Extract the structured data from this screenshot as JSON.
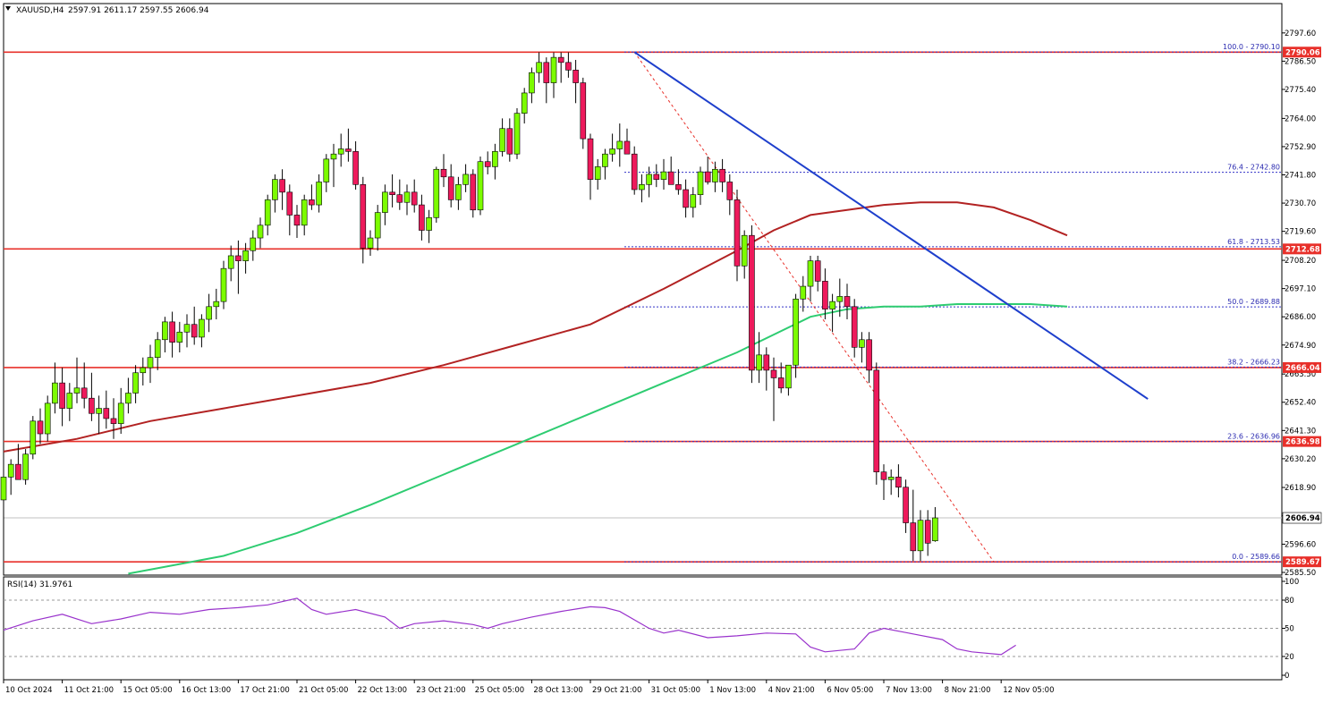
{
  "header": {
    "symbol_label": "XAUUSD,H4",
    "ohlc_text": "2597.91 2611.17 2597.55 2606.94"
  },
  "colors": {
    "background": "#ffffff",
    "bull_fill": "#7CFC00",
    "bear_fill": "#EE1A5C",
    "candle_outline": "#000000",
    "ma_fast": "#B22222",
    "ma_slow": "#2ECC71",
    "trendline": "#1E3FCC",
    "hline": "#E8302A",
    "fib_dotted": "#3232C8",
    "fib_text": "#2A2AB0",
    "rsi_line": "#9932CC",
    "current_price_line": "#C0C0C0"
  },
  "chart_data": [
    {
      "type": "candlestick",
      "title": "XAUUSD,H4",
      "ylim": [
        2585.5,
        2800.0
      ],
      "y_ticks": [
        "2797.60",
        "2786.50",
        "2775.40",
        "2764.00",
        "2752.90",
        "2741.80",
        "2730.70",
        "2719.60",
        "2708.20",
        "2697.10",
        "2686.00",
        "2674.90",
        "2663.50",
        "2652.40",
        "2641.30",
        "2630.20",
        "2618.90",
        "2607.80",
        "2596.60",
        "2585.50"
      ],
      "y_tick_values": [
        2797.6,
        2786.5,
        2775.4,
        2764.0,
        2752.9,
        2741.8,
        2730.7,
        2719.6,
        2708.2,
        2697.1,
        2686.0,
        2674.9,
        2663.5,
        2652.4,
        2641.3,
        2630.2,
        2618.9,
        2607.8,
        2596.6,
        2585.5
      ],
      "x_labels": [
        "10 Oct 2024",
        "11 Oct 21:00",
        "15 Oct 05:00",
        "16 Oct 13:00",
        "17 Oct 21:00",
        "21 Oct 05:00",
        "22 Oct 13:00",
        "23 Oct 21:00",
        "25 Oct 05:00",
        "28 Oct 13:00",
        "29 Oct 21:00",
        "31 Oct 05:00",
        "1 Nov 13:00",
        "4 Nov 21:00",
        "6 Nov 05:00",
        "7 Nov 13:00",
        "8 Nov 21:00",
        "12 Nov 05:00"
      ],
      "x_label_bars": [
        0,
        8,
        16,
        24,
        32,
        40,
        48,
        56,
        64,
        72,
        80,
        88,
        96,
        104,
        112,
        120,
        128,
        136
      ],
      "candles": [
        [
          2614,
          2626,
          2603,
          2623
        ],
        [
          2623,
          2630,
          2616,
          2628
        ],
        [
          2628,
          2636,
          2624,
          2622
        ],
        [
          2622,
          2634,
          2620,
          2632
        ],
        [
          2632,
          2647,
          2630,
          2645
        ],
        [
          2645,
          2650,
          2636,
          2640
        ],
        [
          2640,
          2655,
          2637,
          2652
        ],
        [
          2652,
          2668,
          2648,
          2660
        ],
        [
          2660,
          2666,
          2643,
          2650
        ],
        [
          2650,
          2660,
          2645,
          2656
        ],
        [
          2656,
          2670,
          2652,
          2658
        ],
        [
          2658,
          2668,
          2650,
          2654
        ],
        [
          2654,
          2664,
          2645,
          2648
        ],
        [
          2648,
          2655,
          2640,
          2650
        ],
        [
          2650,
          2657,
          2642,
          2646
        ],
        [
          2646,
          2654,
          2638,
          2644
        ],
        [
          2644,
          2658,
          2640,
          2652
        ],
        [
          2652,
          2662,
          2648,
          2656
        ],
        [
          2656,
          2667,
          2652,
          2664
        ],
        [
          2664,
          2670,
          2659,
          2666
        ],
        [
          2666,
          2675,
          2660,
          2670
        ],
        [
          2670,
          2680,
          2665,
          2677
        ],
        [
          2677,
          2686,
          2672,
          2684
        ],
        [
          2684,
          2688,
          2670,
          2676
        ],
        [
          2676,
          2684,
          2672,
          2680
        ],
        [
          2680,
          2687,
          2674,
          2683
        ],
        [
          2683,
          2690,
          2675,
          2678
        ],
        [
          2678,
          2687,
          2674,
          2685
        ],
        [
          2685,
          2695,
          2680,
          2690
        ],
        [
          2690,
          2697,
          2685,
          2692
        ],
        [
          2692,
          2708,
          2689,
          2705
        ],
        [
          2705,
          2714,
          2700,
          2710
        ],
        [
          2710,
          2716,
          2695,
          2708
        ],
        [
          2708,
          2715,
          2703,
          2712
        ],
        [
          2712,
          2720,
          2708,
          2717
        ],
        [
          2717,
          2725,
          2713,
          2722
        ],
        [
          2722,
          2734,
          2718,
          2732
        ],
        [
          2732,
          2742,
          2727,
          2740
        ],
        [
          2740,
          2744,
          2728,
          2735
        ],
        [
          2735,
          2738,
          2718,
          2726
        ],
        [
          2726,
          2730,
          2717,
          2722
        ],
        [
          2722,
          2734,
          2718,
          2732
        ],
        [
          2732,
          2738,
          2728,
          2730
        ],
        [
          2730,
          2742,
          2727,
          2739
        ],
        [
          2739,
          2750,
          2735,
          2748
        ],
        [
          2748,
          2754,
          2737,
          2750
        ],
        [
          2750,
          2758,
          2745,
          2752
        ],
        [
          2752,
          2760,
          2747,
          2751
        ],
        [
          2751,
          2755,
          2736,
          2738
        ],
        [
          2738,
          2741,
          2707,
          2713
        ],
        [
          2713,
          2720,
          2710,
          2717
        ],
        [
          2717,
          2730,
          2712,
          2727
        ],
        [
          2727,
          2738,
          2722,
          2735
        ],
        [
          2735,
          2742,
          2729,
          2734
        ],
        [
          2734,
          2740,
          2728,
          2731
        ],
        [
          2731,
          2738,
          2726,
          2735
        ],
        [
          2735,
          2740,
          2727,
          2730
        ],
        [
          2730,
          2734,
          2716,
          2720
        ],
        [
          2720,
          2728,
          2715,
          2725
        ],
        [
          2725,
          2745,
          2723,
          2744
        ],
        [
          2744,
          2750,
          2737,
          2741
        ],
        [
          2741,
          2746,
          2729,
          2732
        ],
        [
          2732,
          2741,
          2728,
          2738
        ],
        [
          2738,
          2746,
          2735,
          2742
        ],
        [
          2742,
          2744,
          2725,
          2728
        ],
        [
          2728,
          2749,
          2726,
          2747
        ],
        [
          2747,
          2751,
          2742,
          2745
        ],
        [
          2745,
          2754,
          2740,
          2751
        ],
        [
          2751,
          2764,
          2749,
          2760
        ],
        [
          2760,
          2764,
          2747,
          2750
        ],
        [
          2750,
          2768,
          2748,
          2766
        ],
        [
          2766,
          2776,
          2762,
          2774
        ],
        [
          2774,
          2784,
          2770,
          2782
        ],
        [
          2782,
          2790,
          2778,
          2786
        ],
        [
          2786,
          2788,
          2770,
          2778
        ],
        [
          2778,
          2790,
          2772,
          2788
        ],
        [
          2788,
          2790,
          2778,
          2786
        ],
        [
          2786,
          2790,
          2780,
          2783
        ],
        [
          2783,
          2787,
          2770,
          2778
        ],
        [
          2778,
          2780,
          2752,
          2756
        ],
        [
          2756,
          2758,
          2732,
          2740
        ],
        [
          2740,
          2748,
          2736,
          2745
        ],
        [
          2745,
          2752,
          2740,
          2750
        ],
        [
          2750,
          2758,
          2747,
          2752
        ],
        [
          2752,
          2762,
          2745,
          2755
        ],
        [
          2755,
          2760,
          2750,
          2750
        ],
        [
          2750,
          2753,
          2734,
          2736
        ],
        [
          2736,
          2742,
          2731,
          2738
        ],
        [
          2738,
          2745,
          2733,
          2742
        ],
        [
          2742,
          2746,
          2737,
          2740
        ],
        [
          2740,
          2748,
          2736,
          2743
        ],
        [
          2743,
          2749,
          2739,
          2738
        ],
        [
          2738,
          2744,
          2734,
          2736
        ],
        [
          2736,
          2740,
          2725,
          2729
        ],
        [
          2729,
          2737,
          2725,
          2734
        ],
        [
          2734,
          2745,
          2730,
          2743
        ],
        [
          2743,
          2749,
          2738,
          2739
        ],
        [
          2739,
          2747,
          2735,
          2744
        ],
        [
          2744,
          2748,
          2735,
          2739
        ],
        [
          2739,
          2742,
          2726,
          2732
        ],
        [
          2732,
          2736,
          2700,
          2706
        ],
        [
          2706,
          2720,
          2701,
          2718
        ],
        [
          2718,
          2722,
          2660,
          2665
        ],
        [
          2665,
          2680,
          2660,
          2671
        ],
        [
          2671,
          2674,
          2657,
          2665
        ],
        [
          2665,
          2670,
          2645,
          2662
        ],
        [
          2662,
          2668,
          2656,
          2658
        ],
        [
          2658,
          2666,
          2655,
          2667
        ],
        [
          2667,
          2695,
          2662,
          2693
        ],
        [
          2693,
          2702,
          2688,
          2698
        ],
        [
          2698,
          2710,
          2692,
          2708
        ],
        [
          2708,
          2710,
          2696,
          2700
        ],
        [
          2700,
          2705,
          2685,
          2689
        ],
        [
          2689,
          2695,
          2680,
          2692
        ],
        [
          2692,
          2701,
          2686,
          2694
        ],
        [
          2694,
          2699,
          2685,
          2690
        ],
        [
          2690,
          2693,
          2670,
          2674
        ],
        [
          2674,
          2680,
          2668,
          2677
        ],
        [
          2677,
          2680,
          2660,
          2665
        ],
        [
          2665,
          2668,
          2620,
          2625
        ],
        [
          2625,
          2628,
          2614,
          2622
        ],
        [
          2622,
          2626,
          2616,
          2623
        ],
        [
          2623,
          2628,
          2615,
          2619
        ],
        [
          2619,
          2622,
          2601,
          2605
        ],
        [
          2605,
          2618,
          2590,
          2594
        ],
        [
          2594,
          2610,
          2590,
          2606
        ],
        [
          2606,
          2610,
          2592,
          2597
        ],
        [
          2597.91,
          2611.17,
          2597.55,
          2606.94
        ]
      ],
      "series": [
        {
          "name": "",
          "kind": "moving-average",
          "x": [
            0,
            10,
            20,
            30,
            40,
            50,
            60,
            70,
            80,
            90,
            100,
            105,
            110,
            115,
            120,
            125,
            130,
            135,
            140,
            145
          ],
          "values": [
            2633,
            2638,
            2645,
            2650,
            2655,
            2660,
            2667,
            2675,
            2683,
            2697,
            2712,
            2720,
            2726,
            2728,
            2730,
            2731,
            2731,
            2729,
            2724,
            2718
          ]
        },
        {
          "name": "",
          "kind": "moving-average",
          "x": [
            17,
            30,
            40,
            50,
            60,
            70,
            80,
            90,
            100,
            105,
            110,
            115,
            120,
            125,
            130,
            135,
            140,
            145
          ],
          "values": [
            2585,
            2592,
            2601,
            2612,
            2624,
            2636,
            2648,
            2660,
            2672,
            2679,
            2686,
            2689,
            2690,
            2690,
            2691,
            2691,
            2691,
            2690
          ]
        }
      ],
      "trendline": {
        "x": [
          86,
          156
        ],
        "values": [
          2790.1,
          2653.7
        ]
      },
      "fib_diagonal": {
        "x": [
          86,
          135
        ],
        "values": [
          2790.1,
          2589.66
        ]
      },
      "horizontal_levels": [
        {
          "value": 2790.06,
          "label": "2790.06"
        },
        {
          "value": 2712.68,
          "label": "2712.68"
        },
        {
          "value": 2666.04,
          "label": "2666.04"
        },
        {
          "value": 2636.98,
          "label": "2636.98"
        },
        {
          "value": 2589.67,
          "label": "2589.67"
        }
      ],
      "fibonacci": [
        {
          "level": "100.0",
          "value": 2790.1,
          "label": "100.0 - 2790.10"
        },
        {
          "level": "76.4",
          "value": 2742.8,
          "label": "76.4 - 2742.80"
        },
        {
          "level": "61.8",
          "value": 2713.53,
          "label": "61.8 - 2713.53"
        },
        {
          "level": "50.0",
          "value": 2689.88,
          "label": "50.0 - 2689.88"
        },
        {
          "level": "38.2",
          "value": 2666.23,
          "label": "38.2 - 2666.23"
        },
        {
          "level": "23.6",
          "value": 2636.96,
          "label": "23.6 - 2636.96"
        },
        {
          "level": "0.0",
          "value": 2589.66,
          "label": "0.0 - 2589.66"
        }
      ],
      "current_price": {
        "value": 2606.94,
        "label": "2606.94"
      }
    },
    {
      "type": "line",
      "title": "RSI(14) 31.9761",
      "ylim": [
        0,
        100
      ],
      "y_ticks": [
        "100",
        "80",
        "50",
        "20",
        "0"
      ],
      "y_tick_values": [
        100,
        80,
        50,
        20,
        0
      ],
      "dashed_levels": [
        80,
        50,
        20
      ],
      "x": [
        0,
        4,
        8,
        12,
        16,
        20,
        24,
        28,
        32,
        36,
        40,
        42,
        44,
        48,
        52,
        54,
        56,
        60,
        64,
        66,
        68,
        72,
        76,
        80,
        82,
        84,
        88,
        90,
        92,
        96,
        100,
        104,
        108,
        110,
        112,
        116,
        118,
        120,
        124,
        128,
        130,
        132,
        136,
        138
      ],
      "values": [
        48,
        58,
        65,
        55,
        60,
        67,
        65,
        70,
        72,
        75,
        82,
        70,
        65,
        70,
        62,
        50,
        55,
        58,
        54,
        50,
        55,
        62,
        68,
        73,
        72,
        68,
        50,
        45,
        48,
        40,
        42,
        45,
        44,
        30,
        25,
        28,
        45,
        50,
        44,
        38,
        28,
        25,
        22,
        31.98
      ]
    }
  ]
}
